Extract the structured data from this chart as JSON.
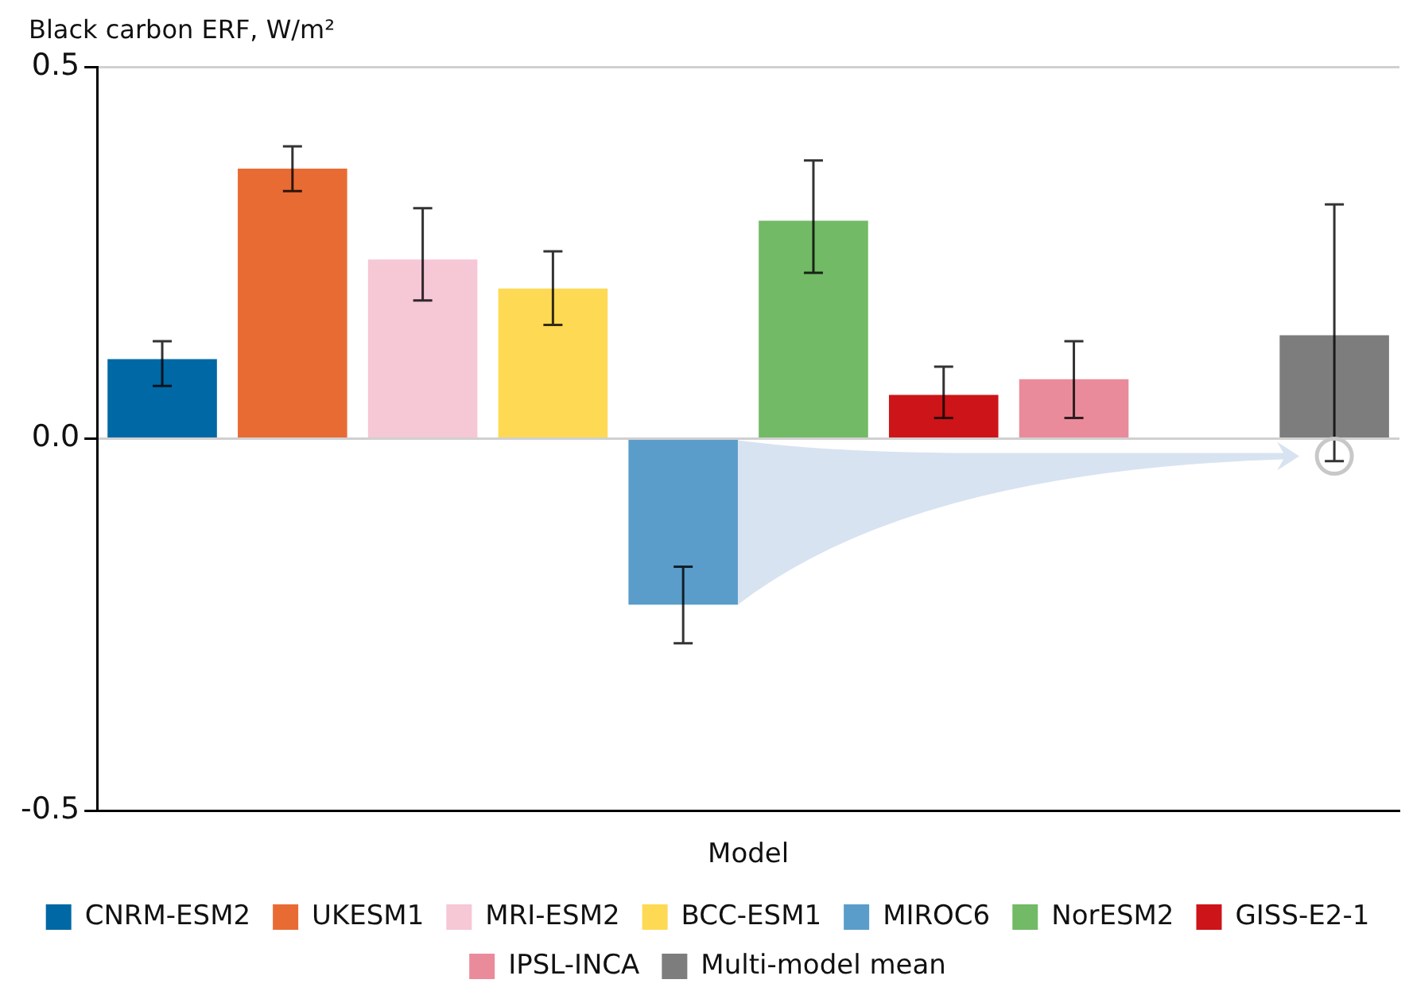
{
  "chart_data": {
    "type": "bar",
    "ylabel": "Black carbon ERF, W/m²",
    "xlabel": "Model",
    "categories": [
      null,
      null,
      null,
      null,
      null,
      null,
      null,
      null,
      null,
      null
    ],
    "series": [
      {
        "name": "CNRM-ESM2",
        "color": "#0068a5",
        "values": [
          0.107,
          null,
          null,
          null,
          null,
          null,
          null,
          null,
          null,
          null
        ],
        "errors": [
          [
            0.071,
            0.131
          ],
          null,
          null,
          null,
          null,
          null,
          null,
          null,
          null,
          null
        ]
      },
      {
        "name": "UKESM1",
        "color": "#e96b34",
        "values": [
          null,
          0.363,
          null,
          null,
          null,
          null,
          null,
          null,
          null,
          null
        ],
        "errors": [
          null,
          [
            0.333,
            0.393
          ],
          null,
          null,
          null,
          null,
          null,
          null,
          null,
          null
        ]
      },
      {
        "name": "MRI-ESM2",
        "color": "#f6c7d5",
        "values": [
          null,
          null,
          0.241,
          null,
          null,
          null,
          null,
          null,
          null,
          null
        ],
        "errors": [
          null,
          null,
          [
            0.186,
            0.31
          ],
          null,
          null,
          null,
          null,
          null,
          null,
          null
        ]
      },
      {
        "name": "BCC-ESM1",
        "color": "#fed954",
        "values": [
          null,
          null,
          null,
          0.202,
          null,
          null,
          null,
          null,
          null,
          null
        ],
        "errors": [
          null,
          null,
          null,
          [
            0.153,
            0.252
          ],
          null,
          null,
          null,
          null,
          null,
          null
        ]
      },
      {
        "name": "MIROC6",
        "color": "#5a9dca",
        "values": [
          null,
          null,
          null,
          null,
          -0.223,
          null,
          null,
          null,
          null,
          null
        ],
        "errors": [
          null,
          null,
          null,
          null,
          [
            -0.275,
            -0.172
          ],
          null,
          null,
          null,
          null,
          null
        ]
      },
      {
        "name": "NorESM2",
        "color": "#72ba65",
        "values": [
          null,
          null,
          null,
          null,
          null,
          0.293,
          null,
          null,
          null,
          null
        ],
        "errors": [
          null,
          null,
          null,
          null,
          null,
          [
            0.223,
            0.374
          ],
          null,
          null,
          null,
          null
        ]
      },
      {
        "name": "GISS-E2-1",
        "color": "#cd1418",
        "values": [
          null,
          null,
          null,
          null,
          null,
          null,
          0.059,
          null,
          null,
          null
        ],
        "errors": [
          null,
          null,
          null,
          null,
          null,
          null,
          [
            0.028,
            0.097
          ],
          null,
          null,
          null
        ]
      },
      {
        "name": "IPSL-INCA",
        "color": "#e98b9b",
        "values": [
          null,
          null,
          null,
          null,
          null,
          null,
          null,
          0.08,
          null,
          null
        ],
        "errors": [
          null,
          null,
          null,
          null,
          null,
          null,
          null,
          [
            0.028,
            0.131
          ],
          null,
          null
        ]
      },
      {
        "name": "Multi-model mean",
        "color": "#7d7d7d",
        "values": [
          null,
          null,
          null,
          null,
          null,
          null,
          null,
          null,
          null,
          0.139
        ],
        "errors": [
          null,
          null,
          null,
          null,
          null,
          null,
          null,
          null,
          null,
          [
            -0.03,
            0.315
          ]
        ]
      }
    ],
    "ylim": [
      -0.5,
      0.5
    ],
    "yticks": [
      {
        "value": -0.5,
        "label": "-0.5"
      },
      {
        "value": 0,
        "label": "0.0"
      },
      {
        "value": 0.5,
        "label": "0.5"
      }
    ],
    "grid": "y",
    "legend": "bottom",
    "tick_labels": "y"
  }
}
